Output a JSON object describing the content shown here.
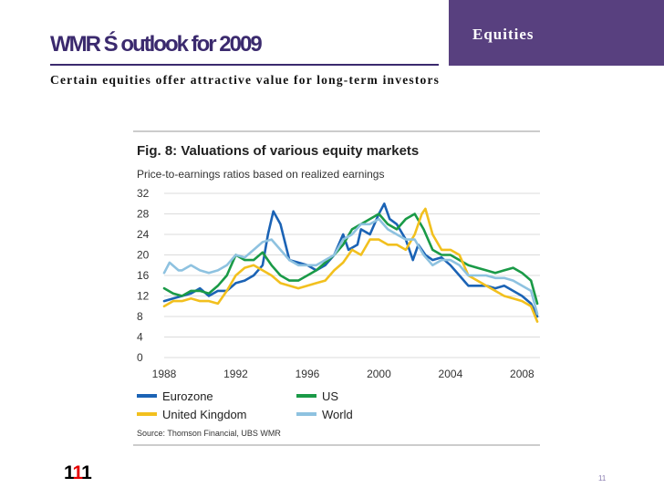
{
  "slide": {
    "title": "WMR Ś outlook for 2009",
    "section": "Equities",
    "subtitle": "Certain equities offer attractive value for long-term investors",
    "logo_a": "1",
    "logo_b": "1",
    "logo_c": "1",
    "page_number": "11"
  },
  "chart_data": {
    "type": "line",
    "title": "Fig. 8: Valuations of various equity markets",
    "subtitle": "Price-to-earnings ratios based on realized earnings",
    "source": "Source: Thomson Financial, UBS WMR",
    "xlim": [
      1988,
      2009
    ],
    "ylim": [
      0,
      32
    ],
    "yticks": [
      0,
      4,
      8,
      12,
      16,
      20,
      24,
      28,
      32
    ],
    "xticks": [
      1988,
      1992,
      1996,
      2000,
      2004,
      2008
    ],
    "grid": true,
    "legend_position": "bottom",
    "series": [
      {
        "name": "Eurozone",
        "color": "#1b63b5",
        "points": [
          [
            1988.0,
            11
          ],
          [
            1988.5,
            11.5
          ],
          [
            1989.0,
            12
          ],
          [
            1989.5,
            12.5
          ],
          [
            1990.0,
            13.5
          ],
          [
            1990.5,
            12
          ],
          [
            1991.0,
            13
          ],
          [
            1991.5,
            13
          ],
          [
            1992.0,
            14.5
          ],
          [
            1992.5,
            15
          ],
          [
            1993.0,
            16
          ],
          [
            1993.5,
            18
          ],
          [
            1993.8,
            24
          ],
          [
            1994.1,
            28.5
          ],
          [
            1994.5,
            26
          ],
          [
            1995.0,
            19
          ],
          [
            1995.5,
            18.5
          ],
          [
            1996.0,
            18
          ],
          [
            1996.5,
            17
          ],
          [
            1997.0,
            18
          ],
          [
            1997.5,
            20
          ],
          [
            1998.0,
            24
          ],
          [
            1998.3,
            21
          ],
          [
            1998.8,
            22
          ],
          [
            1999.0,
            25
          ],
          [
            1999.5,
            24
          ],
          [
            2000.0,
            28
          ],
          [
            2000.3,
            30
          ],
          [
            2000.6,
            27
          ],
          [
            2001.0,
            26
          ],
          [
            2001.5,
            23
          ],
          [
            2001.9,
            19
          ],
          [
            2002.2,
            22
          ],
          [
            2002.6,
            20
          ],
          [
            2003.0,
            19
          ],
          [
            2003.5,
            19.5
          ],
          [
            2004.0,
            18
          ],
          [
            2004.5,
            16
          ],
          [
            2005.0,
            14
          ],
          [
            2005.5,
            14
          ],
          [
            2006.0,
            14
          ],
          [
            2006.5,
            13.5
          ],
          [
            2007.0,
            14
          ],
          [
            2007.5,
            13
          ],
          [
            2008.0,
            12
          ],
          [
            2008.5,
            10.5
          ],
          [
            2008.85,
            8
          ]
        ]
      },
      {
        "name": "US",
        "color": "#1a9a47",
        "points": [
          [
            1988.0,
            13.5
          ],
          [
            1988.5,
            12.5
          ],
          [
            1989.0,
            12
          ],
          [
            1989.5,
            13
          ],
          [
            1990.0,
            13
          ],
          [
            1990.5,
            12.5
          ],
          [
            1991.0,
            14
          ],
          [
            1991.5,
            16
          ],
          [
            1992.0,
            20
          ],
          [
            1992.5,
            19
          ],
          [
            1993.0,
            19
          ],
          [
            1993.5,
            20.5
          ],
          [
            1994.0,
            18
          ],
          [
            1994.5,
            16
          ],
          [
            1995.0,
            15
          ],
          [
            1995.5,
            15
          ],
          [
            1996.0,
            16
          ],
          [
            1996.5,
            17
          ],
          [
            1997.0,
            18.5
          ],
          [
            1997.5,
            20
          ],
          [
            1998.0,
            22
          ],
          [
            1998.5,
            25
          ],
          [
            1999.0,
            26
          ],
          [
            1999.5,
            27
          ],
          [
            2000.0,
            28
          ],
          [
            2000.5,
            26
          ],
          [
            2001.0,
            25
          ],
          [
            2001.5,
            27
          ],
          [
            2002.0,
            28
          ],
          [
            2002.5,
            25
          ],
          [
            2003.0,
            21
          ],
          [
            2003.5,
            20
          ],
          [
            2004.0,
            20
          ],
          [
            2004.5,
            19
          ],
          [
            2005.0,
            18
          ],
          [
            2005.5,
            17.5
          ],
          [
            2006.0,
            17
          ],
          [
            2006.5,
            16.5
          ],
          [
            2007.0,
            17
          ],
          [
            2007.5,
            17.5
          ],
          [
            2008.0,
            16.5
          ],
          [
            2008.5,
            15
          ],
          [
            2008.85,
            10.5
          ]
        ]
      },
      {
        "name": "United Kingdom",
        "color": "#f2c01e",
        "points": [
          [
            1988.0,
            10
          ],
          [
            1988.5,
            11
          ],
          [
            1989.0,
            11
          ],
          [
            1989.5,
            11.5
          ],
          [
            1990.0,
            11
          ],
          [
            1990.5,
            11
          ],
          [
            1991.0,
            10.5
          ],
          [
            1991.5,
            13
          ],
          [
            1992.0,
            16
          ],
          [
            1992.5,
            17.5
          ],
          [
            1993.0,
            18
          ],
          [
            1993.5,
            17
          ],
          [
            1994.0,
            16
          ],
          [
            1994.5,
            14.5
          ],
          [
            1995.0,
            14
          ],
          [
            1995.5,
            13.5
          ],
          [
            1996.0,
            14
          ],
          [
            1996.5,
            14.5
          ],
          [
            1997.0,
            15
          ],
          [
            1997.5,
            17
          ],
          [
            1998.0,
            18.5
          ],
          [
            1998.5,
            21
          ],
          [
            1999.0,
            20
          ],
          [
            1999.5,
            23
          ],
          [
            2000.0,
            23
          ],
          [
            2000.5,
            22
          ],
          [
            2001.0,
            22
          ],
          [
            2001.5,
            21
          ],
          [
            2002.0,
            24
          ],
          [
            2002.4,
            28
          ],
          [
            2002.6,
            29
          ],
          [
            2003.0,
            24
          ],
          [
            2003.5,
            21
          ],
          [
            2004.0,
            21
          ],
          [
            2004.5,
            20
          ],
          [
            2005.0,
            16
          ],
          [
            2005.5,
            15
          ],
          [
            2006.0,
            14
          ],
          [
            2006.5,
            13
          ],
          [
            2007.0,
            12
          ],
          [
            2007.5,
            11.5
          ],
          [
            2008.0,
            11
          ],
          [
            2008.5,
            10
          ],
          [
            2008.85,
            7
          ]
        ]
      },
      {
        "name": "World",
        "color": "#8ec2e0",
        "points": [
          [
            1988.0,
            16.5
          ],
          [
            1988.3,
            18.5
          ],
          [
            1988.8,
            17
          ],
          [
            1989.0,
            17
          ],
          [
            1989.5,
            18
          ],
          [
            1990.0,
            17
          ],
          [
            1990.5,
            16.5
          ],
          [
            1991.0,
            17
          ],
          [
            1991.5,
            18
          ],
          [
            1992.0,
            20
          ],
          [
            1992.5,
            19.5
          ],
          [
            1993.0,
            21
          ],
          [
            1993.5,
            22.5
          ],
          [
            1994.0,
            23
          ],
          [
            1994.5,
            21
          ],
          [
            1995.0,
            19
          ],
          [
            1995.5,
            18
          ],
          [
            1996.0,
            18
          ],
          [
            1996.5,
            18
          ],
          [
            1997.0,
            19
          ],
          [
            1997.5,
            20
          ],
          [
            1998.0,
            23
          ],
          [
            1998.5,
            24
          ],
          [
            1999.0,
            26
          ],
          [
            1999.5,
            26
          ],
          [
            2000.0,
            27
          ],
          [
            2000.5,
            25
          ],
          [
            2001.0,
            24
          ],
          [
            2001.5,
            23
          ],
          [
            2002.0,
            23
          ],
          [
            2002.5,
            20
          ],
          [
            2003.0,
            18
          ],
          [
            2003.5,
            19
          ],
          [
            2004.0,
            19
          ],
          [
            2004.5,
            18
          ],
          [
            2005.0,
            16
          ],
          [
            2005.5,
            16
          ],
          [
            2006.0,
            16
          ],
          [
            2006.5,
            15.5
          ],
          [
            2007.0,
            15.5
          ],
          [
            2007.5,
            15
          ],
          [
            2008.0,
            14
          ],
          [
            2008.5,
            13
          ],
          [
            2008.85,
            8.5
          ]
        ]
      }
    ]
  }
}
